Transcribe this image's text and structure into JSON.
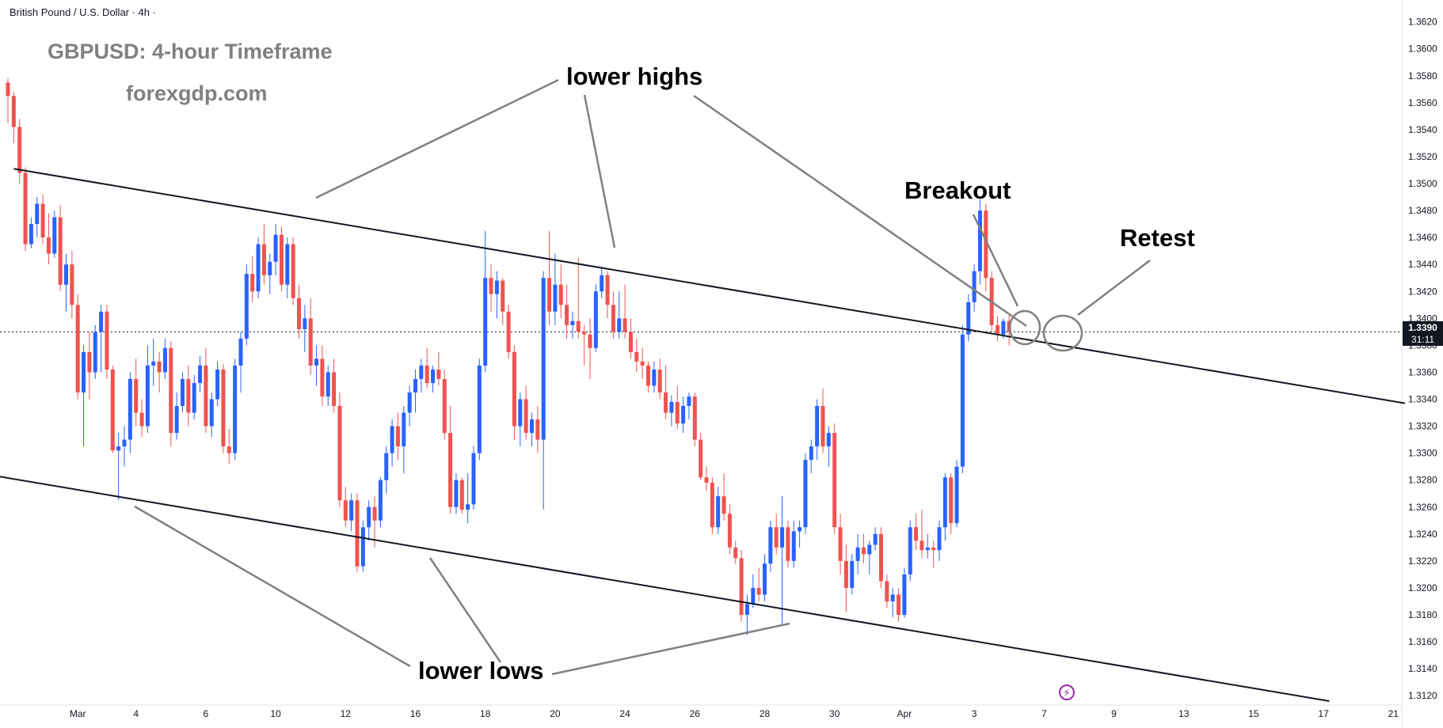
{
  "header": {
    "symbol_line": "British Pound / U.S. Dollar · 4h ·"
  },
  "overlay": {
    "title": "GBPUSD: 4-hour Timeframe",
    "website": "forexgdp.com"
  },
  "annotations": {
    "lower_highs": "lower highs",
    "lower_lows": "lower lows",
    "breakout": "Breakout",
    "retest": "Retest"
  },
  "price_badge": {
    "price": "1.3390",
    "countdown": "31:11"
  },
  "colors": {
    "bull": "#2962ff",
    "bear": "#ef5350",
    "line": "#131722",
    "pointer": "#808080"
  },
  "chart_data": {
    "type": "candlestick",
    "title": "",
    "xlabel": "",
    "ylabel": "",
    "ylim": [
      1.3116,
      1.3628
    ],
    "y_ticks": [
      "1.3620",
      "1.3600",
      "1.3580",
      "1.3560",
      "1.3540",
      "1.3520",
      "1.3500",
      "1.3480",
      "1.3460",
      "1.3440",
      "1.3420",
      "1.3400",
      "1.3380",
      "1.3360",
      "1.3340",
      "1.3320",
      "1.3300",
      "1.3280",
      "1.3260",
      "1.3240",
      "1.3220",
      "1.3200",
      "1.3180",
      "1.3160",
      "1.3140",
      "1.3120"
    ],
    "x_ticks": [
      {
        "label": "Mar",
        "bar": 12
      },
      {
        "label": "4",
        "bar": 22
      },
      {
        "label": "6",
        "bar": 34
      },
      {
        "label": "10",
        "bar": 46
      },
      {
        "label": "12",
        "bar": 58
      },
      {
        "label": "16",
        "bar": 70
      },
      {
        "label": "18",
        "bar": 82
      },
      {
        "label": "20",
        "bar": 94
      },
      {
        "label": "24",
        "bar": 106
      },
      {
        "label": "26",
        "bar": 118
      },
      {
        "label": "28",
        "bar": 130
      },
      {
        "label": "30",
        "bar": 142
      },
      {
        "label": "Apr",
        "bar": 154
      },
      {
        "label": "3",
        "bar": 166
      },
      {
        "label": "7",
        "bar": 178
      },
      {
        "label": "9",
        "bar": 190
      },
      {
        "label": "13",
        "bar": 202
      },
      {
        "label": "15",
        "bar": 214
      },
      {
        "label": "17",
        "bar": 226
      },
      {
        "label": "21",
        "bar": 238
      }
    ],
    "current_price": 1.339,
    "candles": [
      [
        1.3575,
        1.3578,
        1.3545,
        1.3565
      ],
      [
        1.3565,
        1.3568,
        1.353,
        1.3542
      ],
      [
        1.3542,
        1.3548,
        1.35,
        1.3508
      ],
      [
        1.3508,
        1.3512,
        1.345,
        1.3455
      ],
      [
        1.3455,
        1.3475,
        1.3452,
        1.347
      ],
      [
        1.347,
        1.349,
        1.346,
        1.3485
      ],
      [
        1.3485,
        1.3492,
        1.3455,
        1.346
      ],
      [
        1.346,
        1.3478,
        1.344,
        1.3448
      ],
      [
        1.3448,
        1.348,
        1.3445,
        1.3475
      ],
      [
        1.3475,
        1.3484,
        1.342,
        1.3425
      ],
      [
        1.3425,
        1.3448,
        1.3405,
        1.344
      ],
      [
        1.344,
        1.345,
        1.34,
        1.341
      ],
      [
        1.341,
        1.3418,
        1.334,
        1.3345
      ],
      [
        1.3345,
        1.338,
        1.3305,
        1.3375
      ],
      [
        1.3375,
        1.339,
        1.334,
        1.336
      ],
      [
        1.336,
        1.3395,
        1.3355,
        1.339
      ],
      [
        1.339,
        1.341,
        1.336,
        1.3405
      ],
      [
        1.3405,
        1.341,
        1.3355,
        1.3362
      ],
      [
        1.3362,
        1.3365,
        1.33,
        1.3302
      ],
      [
        1.3302,
        1.3315,
        1.3265,
        1.3305
      ],
      [
        1.3305,
        1.332,
        1.329,
        1.331
      ],
      [
        1.331,
        1.336,
        1.33,
        1.3355
      ],
      [
        1.3355,
        1.337,
        1.332,
        1.333
      ],
      [
        1.333,
        1.334,
        1.3312,
        1.332
      ],
      [
        1.332,
        1.338,
        1.3315,
        1.3365
      ],
      [
        1.3365,
        1.3385,
        1.335,
        1.3368
      ],
      [
        1.3368,
        1.3375,
        1.3345,
        1.336
      ],
      [
        1.336,
        1.3385,
        1.3355,
        1.3378
      ],
      [
        1.3378,
        1.3383,
        1.3305,
        1.3315
      ],
      [
        1.3315,
        1.3345,
        1.331,
        1.3335
      ],
      [
        1.3335,
        1.336,
        1.333,
        1.3355
      ],
      [
        1.3355,
        1.3365,
        1.332,
        1.333
      ],
      [
        1.333,
        1.3358,
        1.3325,
        1.3352
      ],
      [
        1.3352,
        1.3372,
        1.3345,
        1.3365
      ],
      [
        1.3365,
        1.3378,
        1.3315,
        1.332
      ],
      [
        1.332,
        1.3345,
        1.3312,
        1.334
      ],
      [
        1.334,
        1.3368,
        1.3335,
        1.3362
      ],
      [
        1.3362,
        1.3366,
        1.33,
        1.3305
      ],
      [
        1.3305,
        1.3318,
        1.3292,
        1.33
      ],
      [
        1.33,
        1.337,
        1.3295,
        1.3365
      ],
      [
        1.3365,
        1.339,
        1.3345,
        1.3385
      ],
      [
        1.3385,
        1.344,
        1.338,
        1.3433
      ],
      [
        1.3433,
        1.3446,
        1.3412,
        1.342
      ],
      [
        1.342,
        1.346,
        1.3415,
        1.3455
      ],
      [
        1.3455,
        1.347,
        1.3425,
        1.3432
      ],
      [
        1.3432,
        1.3448,
        1.3418,
        1.3442
      ],
      [
        1.3442,
        1.347,
        1.3432,
        1.3462
      ],
      [
        1.3462,
        1.3468,
        1.342,
        1.3425
      ],
      [
        1.3425,
        1.346,
        1.3415,
        1.3455
      ],
      [
        1.3455,
        1.346,
        1.341,
        1.3415
      ],
      [
        1.3415,
        1.3425,
        1.3385,
        1.3392
      ],
      [
        1.3392,
        1.341,
        1.3375,
        1.34
      ],
      [
        1.34,
        1.3415,
        1.3358,
        1.3365
      ],
      [
        1.3365,
        1.338,
        1.335,
        1.337
      ],
      [
        1.337,
        1.338,
        1.3335,
        1.3342
      ],
      [
        1.3342,
        1.3365,
        1.3335,
        1.336
      ],
      [
        1.336,
        1.337,
        1.333,
        1.3335
      ],
      [
        1.3335,
        1.3345,
        1.326,
        1.3265
      ],
      [
        1.3265,
        1.3275,
        1.3245,
        1.325
      ],
      [
        1.325,
        1.327,
        1.3242,
        1.3265
      ],
      [
        1.3265,
        1.327,
        1.3212,
        1.3216
      ],
      [
        1.3216,
        1.325,
        1.3212,
        1.3245
      ],
      [
        1.3245,
        1.3265,
        1.3235,
        1.326
      ],
      [
        1.326,
        1.3268,
        1.323,
        1.325
      ],
      [
        1.325,
        1.3282,
        1.3245,
        1.328
      ],
      [
        1.328,
        1.3305,
        1.327,
        1.33
      ],
      [
        1.33,
        1.3325,
        1.329,
        1.332
      ],
      [
        1.332,
        1.333,
        1.3295,
        1.3305
      ],
      [
        1.3305,
        1.3335,
        1.3285,
        1.333
      ],
      [
        1.333,
        1.335,
        1.332,
        1.3345
      ],
      [
        1.3345,
        1.3362,
        1.333,
        1.3355
      ],
      [
        1.3355,
        1.337,
        1.3345,
        1.3365
      ],
      [
        1.3365,
        1.3378,
        1.3348,
        1.3352
      ],
      [
        1.3352,
        1.3365,
        1.3345,
        1.3362
      ],
      [
        1.3362,
        1.3375,
        1.335,
        1.3355
      ],
      [
        1.3355,
        1.3362,
        1.331,
        1.3315
      ],
      [
        1.3315,
        1.3335,
        1.3255,
        1.326
      ],
      [
        1.326,
        1.3285,
        1.3255,
        1.328
      ],
      [
        1.328,
        1.3282,
        1.3255,
        1.3258
      ],
      [
        1.3258,
        1.3285,
        1.3248,
        1.3262
      ],
      [
        1.3262,
        1.3305,
        1.3258,
        1.33
      ],
      [
        1.33,
        1.337,
        1.3295,
        1.3365
      ],
      [
        1.3365,
        1.3465,
        1.336,
        1.343
      ],
      [
        1.343,
        1.344,
        1.3405,
        1.3418
      ],
      [
        1.3418,
        1.3435,
        1.34,
        1.3428
      ],
      [
        1.3428,
        1.343,
        1.3395,
        1.3405
      ],
      [
        1.3405,
        1.341,
        1.337,
        1.3375
      ],
      [
        1.3375,
        1.338,
        1.331,
        1.332
      ],
      [
        1.332,
        1.3345,
        1.3305,
        1.334
      ],
      [
        1.334,
        1.335,
        1.331,
        1.3315
      ],
      [
        1.3315,
        1.333,
        1.3305,
        1.3325
      ],
      [
        1.3325,
        1.3335,
        1.33,
        1.331
      ],
      [
        1.331,
        1.3435,
        1.3258,
        1.343
      ],
      [
        1.343,
        1.3465,
        1.3395,
        1.3405
      ],
      [
        1.3405,
        1.3448,
        1.3395,
        1.3425
      ],
      [
        1.3425,
        1.344,
        1.34,
        1.341
      ],
      [
        1.341,
        1.3425,
        1.3385,
        1.3395
      ],
      [
        1.3395,
        1.3405,
        1.3385,
        1.3398
      ],
      [
        1.3398,
        1.3445,
        1.3385,
        1.339
      ],
      [
        1.339,
        1.3395,
        1.3365,
        1.3388
      ],
      [
        1.3388,
        1.34,
        1.3355,
        1.3378
      ],
      [
        1.3378,
        1.3425,
        1.3375,
        1.342
      ],
      [
        1.342,
        1.3438,
        1.3415,
        1.3432
      ],
      [
        1.3432,
        1.3435,
        1.34,
        1.341
      ],
      [
        1.341,
        1.342,
        1.3385,
        1.339
      ],
      [
        1.339,
        1.342,
        1.3385,
        1.34
      ],
      [
        1.34,
        1.3425,
        1.3385,
        1.339
      ],
      [
        1.339,
        1.34,
        1.337,
        1.3375
      ],
      [
        1.3375,
        1.3385,
        1.336,
        1.3368
      ],
      [
        1.3368,
        1.3378,
        1.3355,
        1.3365
      ],
      [
        1.3365,
        1.3368,
        1.3345,
        1.335
      ],
      [
        1.335,
        1.3368,
        1.3345,
        1.3362
      ],
      [
        1.3362,
        1.337,
        1.334,
        1.3345
      ],
      [
        1.3345,
        1.3365,
        1.3325,
        1.333
      ],
      [
        1.333,
        1.3343,
        1.332,
        1.3338
      ],
      [
        1.3338,
        1.335,
        1.3318,
        1.3322
      ],
      [
        1.3322,
        1.3342,
        1.3315,
        1.3335
      ],
      [
        1.3335,
        1.3345,
        1.3325,
        1.3342
      ],
      [
        1.3342,
        1.3345,
        1.3305,
        1.331
      ],
      [
        1.331,
        1.3315,
        1.328,
        1.3282
      ],
      [
        1.3282,
        1.329,
        1.3272,
        1.3278
      ],
      [
        1.3278,
        1.3282,
        1.324,
        1.3245
      ],
      [
        1.3245,
        1.3275,
        1.324,
        1.3268
      ],
      [
        1.3268,
        1.3285,
        1.325,
        1.3255
      ],
      [
        1.3255,
        1.3262,
        1.3225,
        1.323
      ],
      [
        1.323,
        1.3235,
        1.3218,
        1.3222
      ],
      [
        1.3222,
        1.3228,
        1.3175,
        1.318
      ],
      [
        1.318,
        1.3195,
        1.3165,
        1.3188
      ],
      [
        1.3188,
        1.321,
        1.3185,
        1.32
      ],
      [
        1.32,
        1.3215,
        1.319,
        1.3195
      ],
      [
        1.3195,
        1.3225,
        1.319,
        1.3218
      ],
      [
        1.3218,
        1.325,
        1.3212,
        1.3245
      ],
      [
        1.3245,
        1.3255,
        1.3225,
        1.323
      ],
      [
        1.323,
        1.3268,
        1.3172,
        1.3245
      ],
      [
        1.3245,
        1.325,
        1.3215,
        1.322
      ],
      [
        1.322,
        1.325,
        1.3215,
        1.3242
      ],
      [
        1.3242,
        1.325,
        1.323,
        1.3245
      ],
      [
        1.3245,
        1.33,
        1.324,
        1.3295
      ],
      [
        1.3295,
        1.331,
        1.3285,
        1.3305
      ],
      [
        1.3305,
        1.334,
        1.3295,
        1.3335
      ],
      [
        1.3335,
        1.3348,
        1.33,
        1.3305
      ],
      [
        1.3305,
        1.332,
        1.329,
        1.3315
      ],
      [
        1.3315,
        1.3322,
        1.324,
        1.3245
      ],
      [
        1.3245,
        1.3255,
        1.321,
        1.322
      ],
      [
        1.322,
        1.3232,
        1.3182,
        1.32
      ],
      [
        1.32,
        1.3225,
        1.3195,
        1.322
      ],
      [
        1.322,
        1.324,
        1.321,
        1.323
      ],
      [
        1.323,
        1.324,
        1.3218,
        1.3225
      ],
      [
        1.3225,
        1.3235,
        1.321,
        1.3232
      ],
      [
        1.3232,
        1.3245,
        1.3228,
        1.324
      ],
      [
        1.324,
        1.3245,
        1.32,
        1.3205
      ],
      [
        1.3205,
        1.321,
        1.3185,
        1.319
      ],
      [
        1.319,
        1.32,
        1.3178,
        1.3195
      ],
      [
        1.3195,
        1.32,
        1.3175,
        1.318
      ],
      [
        1.318,
        1.3215,
        1.3178,
        1.321
      ],
      [
        1.321,
        1.325,
        1.3205,
        1.3245
      ],
      [
        1.3245,
        1.3255,
        1.3228,
        1.3235
      ],
      [
        1.3235,
        1.3258,
        1.3222,
        1.3228
      ],
      [
        1.3228,
        1.324,
        1.3222,
        1.323
      ],
      [
        1.323,
        1.3235,
        1.3215,
        1.3228
      ],
      [
        1.3228,
        1.325,
        1.322,
        1.3245
      ],
      [
        1.3245,
        1.3285,
        1.3235,
        1.3282
      ],
      [
        1.3282,
        1.3285,
        1.324,
        1.3248
      ],
      [
        1.3248,
        1.3295,
        1.3245,
        1.329
      ],
      [
        1.329,
        1.3395,
        1.3285,
        1.3388
      ],
      [
        1.3388,
        1.3418,
        1.3383,
        1.3412
      ],
      [
        1.3412,
        1.344,
        1.3405,
        1.3435
      ],
      [
        1.3435,
        1.3488,
        1.3425,
        1.348
      ],
      [
        1.348,
        1.3485,
        1.342,
        1.343
      ],
      [
        1.343,
        1.3435,
        1.339,
        1.3395
      ],
      [
        1.3395,
        1.3402,
        1.3383,
        1.3388
      ],
      [
        1.3388,
        1.34,
        1.3385,
        1.3398
      ],
      [
        1.3398,
        1.3403,
        1.338,
        1.339
      ]
    ],
    "trendlines": [
      {
        "name": "upper-channel",
        "from_bar": 1,
        "from_price": 1.3511,
        "to_bar": 240,
        "to_price": 1.3337
      },
      {
        "name": "lower-channel",
        "from_bar": -2,
        "from_price": 1.3283,
        "to_bar": 227,
        "to_price": 1.3116
      }
    ]
  }
}
